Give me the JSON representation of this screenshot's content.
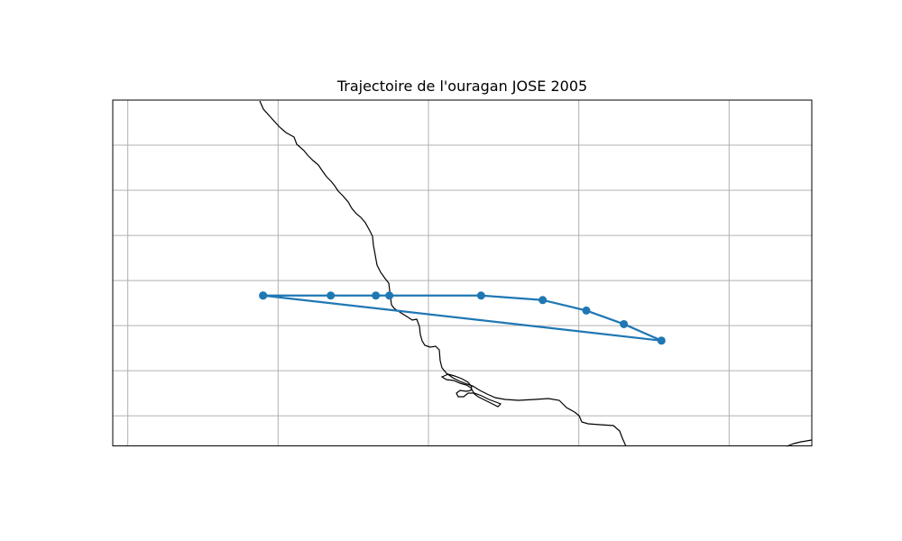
{
  "map": {
    "title": "Trajectoire de l'ouragan JOSE 2005",
    "colors": {
      "track": "#1f77b4",
      "coastline": "#000000",
      "grid": "#b0b0b0",
      "frame": "#000000",
      "background": "#ffffff"
    },
    "grid": true
  },
  "chart_data": {
    "type": "scatter",
    "title": "Trajectoire de l'ouragan JOSE 2005",
    "xlabel": "",
    "ylabel": "",
    "xlim": [
      -100.5,
      -77.25
    ],
    "ylim": [
      14.0,
      25.5
    ],
    "grid": true,
    "x_gridlines": [
      -100,
      -95,
      -90,
      -85,
      -80
    ],
    "y_gridlines": [
      15,
      16.5,
      18,
      19.5,
      21,
      22.5,
      24
    ],
    "series": [
      {
        "marker": "circle",
        "color": "#1f77b4",
        "lon": [
          -95.5,
          -93.25,
          -91.75,
          -91.3,
          -88.25,
          -86.2,
          -84.75,
          -83.5,
          -82.25,
          -95.5
        ],
        "lat": [
          19.0,
          19.0,
          19.0,
          19.0,
          19.0,
          18.85,
          18.5,
          18.05,
          17.5,
          19.0
        ]
      }
    ]
  }
}
